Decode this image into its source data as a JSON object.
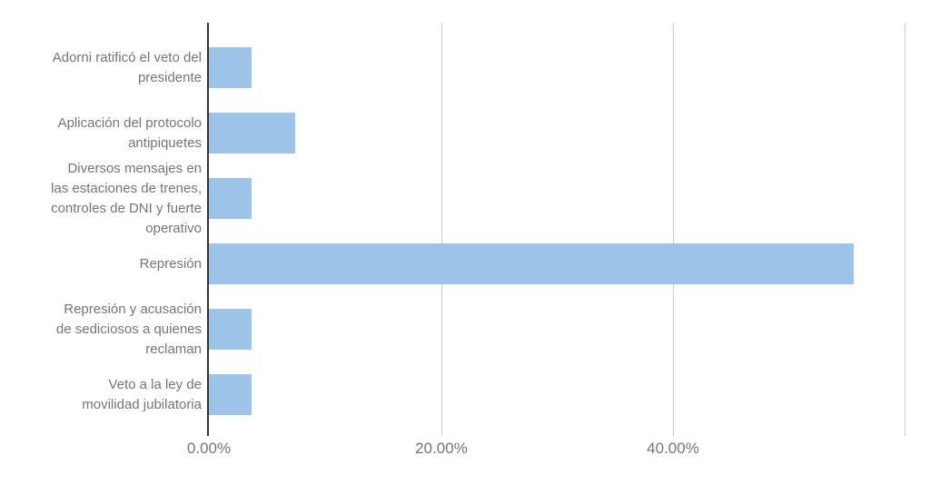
{
  "chart_data": {
    "type": "bar",
    "orientation": "horizontal",
    "title": "",
    "xlabel": "",
    "ylabel": "",
    "legend": "none",
    "grid": "vertical-only",
    "categories": [
      "Adorni ratificó el veto del presidente",
      "Aplicación del protocolo antipiquetes",
      "Diversos mensajes en las estaciones de trenes, controles de DNI y fuerte operativo",
      "Represión",
      "Represión y acusación de sediciosos a quienes reclaman",
      "Veto a la ley de movilidad jubilatoria"
    ],
    "label_lines": [
      [
        "Adorni ratificó el veto del",
        "presidente"
      ],
      [
        "Aplicación del protocolo",
        "antipiquetes"
      ],
      [
        "Diversos mensajes en",
        "las estaciones de trenes,",
        "controles de DNI y fuerte",
        "operativo"
      ],
      [
        "Represión"
      ],
      [
        "Represión y acusación",
        "de sediciosos a quienes",
        "reclaman"
      ],
      [
        "Veto a la ley de",
        "movilidad jubilatoria"
      ]
    ],
    "values": [
      3.7,
      7.41,
      3.7,
      55.56,
      3.7,
      3.7
    ],
    "value_unit": "percent",
    "xlim": [
      0,
      60
    ],
    "x_tick_values": [
      0,
      20,
      40
    ],
    "x_tick_labels": [
      "0.00%",
      "20.00%",
      "40.00%"
    ],
    "gridline_values": [
      20,
      40,
      60
    ],
    "colors": {
      "bar": "#9dc4e8",
      "gridline": "#cccccc",
      "axis_line": "#333333",
      "tick_label": "#757575",
      "category_label": "#757575",
      "background": "#ffffff"
    }
  }
}
